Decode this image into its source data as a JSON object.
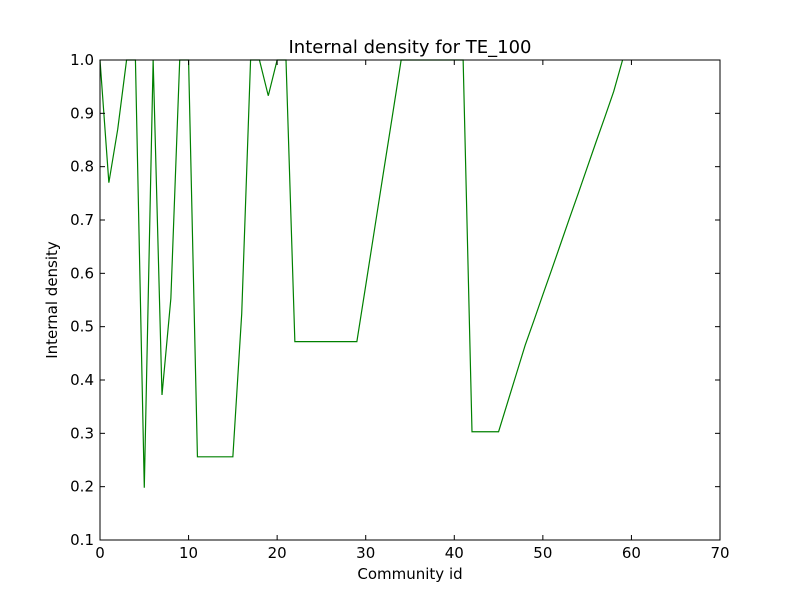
{
  "chart_data": {
    "type": "line",
    "title": "Internal density for TE_100",
    "xlabel": "Community id",
    "ylabel": "Internal density",
    "xlim": [
      0,
      70
    ],
    "ylim": [
      0.1,
      1.0
    ],
    "x_ticks": [
      0,
      10,
      20,
      30,
      40,
      50,
      60,
      70
    ],
    "y_ticks": [
      0.1,
      0.2,
      0.3,
      0.4,
      0.5,
      0.6,
      0.7,
      0.8,
      0.9,
      1.0
    ],
    "x_tick_labels": [
      "0",
      "10",
      "20",
      "30",
      "40",
      "50",
      "60",
      "70"
    ],
    "y_tick_labels": [
      "0.1",
      "0.2",
      "0.3",
      "0.4",
      "0.5",
      "0.6",
      "0.7",
      "0.8",
      "0.9",
      "1.0"
    ],
    "grid": false,
    "series": [
      {
        "color": "#008000",
        "x": [
          0,
          1,
          2,
          3,
          4,
          5,
          6,
          7,
          8,
          9,
          10,
          11,
          12,
          13,
          14,
          15,
          16,
          17,
          18,
          19,
          20,
          21,
          22,
          23,
          24,
          25,
          26,
          27,
          28,
          29,
          30,
          31,
          32,
          33,
          34,
          35,
          36,
          37,
          38,
          39,
          40,
          41,
          42,
          43,
          44,
          45,
          46,
          47,
          48,
          49,
          50,
          51,
          52,
          53,
          54,
          55,
          56,
          57,
          58,
          59
        ],
        "y": [
          1.0,
          0.77,
          0.87,
          1.0,
          1.0,
          0.198,
          1.0,
          0.372,
          0.553,
          1.0,
          1.0,
          0.256,
          0.256,
          0.256,
          0.256,
          0.256,
          0.524,
          1.0,
          1.0,
          0.933,
          1.0,
          1.0,
          0.472,
          0.472,
          0.472,
          0.472,
          0.472,
          0.472,
          0.472,
          0.472,
          0.577,
          0.683,
          0.789,
          0.894,
          1.0,
          1.0,
          1.0,
          1.0,
          1.0,
          1.0,
          1.0,
          1.0,
          0.303,
          0.303,
          0.303,
          0.303,
          0.357,
          0.411,
          0.465,
          0.512,
          0.56,
          0.607,
          0.655,
          0.703,
          0.75,
          0.798,
          0.846,
          0.893,
          0.941,
          1.0
        ]
      }
    ]
  }
}
